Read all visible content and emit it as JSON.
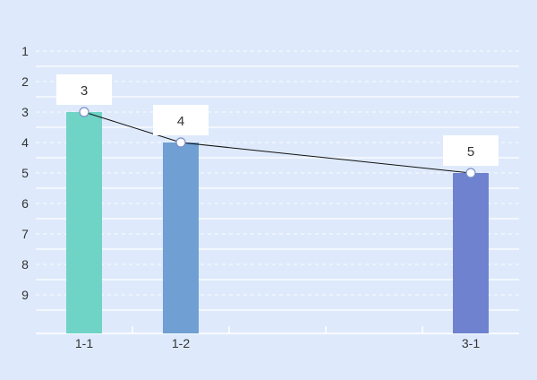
{
  "chart_data": {
    "type": "bar",
    "categories": [
      "1-1",
      "1-2",
      "",
      "",
      "3-1"
    ],
    "values": [
      3,
      4,
      null,
      null,
      5
    ],
    "bar_colors": [
      "#6fd3c6",
      "#6f9fd3",
      null,
      null,
      "#6f82d0"
    ],
    "y_axis": {
      "ticks": [
        1,
        2,
        3,
        4,
        5,
        6,
        7,
        8,
        9
      ],
      "inverted": true,
      "range": [
        0.5,
        10.5
      ]
    },
    "line_overlay": true,
    "data_labels": true,
    "grid": "horizontal",
    "title": "",
    "xlabel": "",
    "ylabel": ""
  },
  "colors": {
    "background": "#deeafb",
    "grid_solid": "#ffffff",
    "grid_dashed": "#ffffff",
    "axis": "#ffffff",
    "line": "#111111",
    "marker_fill": "#ffffff",
    "marker_stroke": "#7a8fc8",
    "label_box": "#ffffff"
  }
}
